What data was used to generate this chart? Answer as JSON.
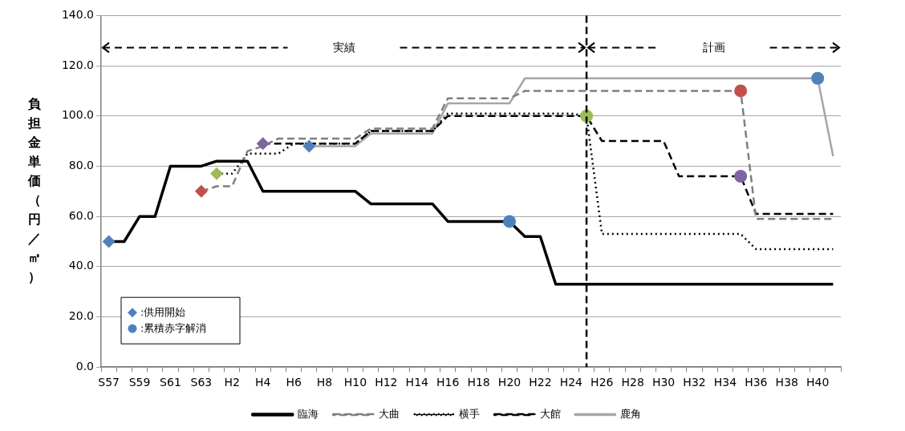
{
  "chart_data": {
    "type": "line",
    "ylabel": "負担金単価（円／㎥）",
    "categories": [
      "S57",
      null,
      "S59",
      null,
      "S61",
      null,
      "S63",
      null,
      "H2",
      null,
      "H4",
      null,
      "H6",
      null,
      "H8",
      null,
      "H10",
      null,
      "H12",
      null,
      "H14",
      null,
      "H16",
      null,
      "H18",
      null,
      "H20",
      null,
      "H22",
      null,
      "H24",
      null,
      "H26",
      null,
      "H28",
      null,
      "H30",
      null,
      "H32",
      null,
      "H34",
      null,
      "H36",
      null,
      "H38",
      null,
      "H40",
      null
    ],
    "series": [
      {
        "name": "臨海",
        "color": "#000000",
        "line_style": "solid",
        "values": [
          50,
          50,
          60,
          60,
          80,
          80,
          80,
          82,
          82,
          82,
          70,
          70,
          70,
          70,
          70,
          70,
          70,
          65,
          65,
          65,
          65,
          65,
          58,
          58,
          58,
          58,
          58,
          52,
          52,
          33,
          33,
          33,
          33,
          33,
          33,
          33,
          33,
          33,
          33,
          33,
          33,
          33,
          33,
          33,
          33,
          33,
          33,
          33
        ]
      },
      {
        "name": "大曲",
        "color": "#7f7f7f",
        "line_style": "dashed",
        "values": [
          null,
          null,
          null,
          null,
          null,
          null,
          70,
          72,
          72,
          86,
          88,
          91,
          91,
          91,
          91,
          91,
          91,
          95,
          95,
          95,
          95,
          95,
          107,
          107,
          107,
          107,
          107,
          110,
          110,
          110,
          110,
          110,
          110,
          110,
          110,
          110,
          110,
          110,
          110,
          110,
          110,
          110,
          59,
          59,
          59,
          59,
          59,
          59
        ]
      },
      {
        "name": "横手",
        "color": "#000000",
        "line_style": "dotted",
        "values": [
          null,
          null,
          null,
          null,
          null,
          null,
          null,
          77,
          77,
          85,
          85,
          85,
          89,
          89,
          89,
          89,
          89,
          94,
          94,
          94,
          94,
          94,
          101,
          101,
          101,
          101,
          101,
          101,
          101,
          101,
          101,
          100,
          53,
          53,
          53,
          53,
          53,
          53,
          53,
          53,
          53,
          53,
          47,
          47,
          47,
          47,
          47,
          47
        ]
      },
      {
        "name": "大館",
        "color": "#000000",
        "line_style": "dashed",
        "values": [
          null,
          null,
          null,
          null,
          null,
          null,
          null,
          null,
          null,
          null,
          89,
          89,
          89,
          89,
          89,
          89,
          89,
          94,
          94,
          94,
          94,
          94,
          100,
          100,
          100,
          100,
          100,
          100,
          100,
          100,
          100,
          100,
          90,
          90,
          90,
          90,
          90,
          76,
          76,
          76,
          76,
          76,
          61,
          61,
          61,
          61,
          61,
          61
        ]
      },
      {
        "name": "鹿角",
        "color": "#a6a6a6",
        "line_style": "solid",
        "values": [
          null,
          null,
          null,
          null,
          null,
          null,
          null,
          null,
          null,
          null,
          null,
          null,
          null,
          88,
          88,
          88,
          88,
          93,
          93,
          93,
          93,
          93,
          105,
          105,
          105,
          105,
          105,
          115,
          115,
          115,
          115,
          115,
          115,
          115,
          115,
          115,
          115,
          115,
          115,
          115,
          115,
          115,
          115,
          115,
          115,
          115,
          115,
          84
        ]
      },
      {
        "type": "scatter",
        "name": ":供用開始",
        "marker": "diamond",
        "values": [
          50,
          null,
          null,
          null,
          null,
          null,
          70,
          77,
          null,
          null,
          89,
          null,
          null,
          88,
          null,
          null,
          null,
          null,
          null,
          null,
          null,
          null,
          null,
          null,
          null,
          null,
          null,
          null,
          null,
          null,
          null,
          null,
          null,
          null,
          null,
          null,
          null,
          null,
          null,
          null,
          null,
          null,
          null,
          null,
          null,
          null,
          null,
          null
        ],
        "colors": [
          "#4f81bd",
          null,
          null,
          null,
          null,
          null,
          "#c0504d",
          "#9bbb59",
          null,
          null,
          "#8064a2",
          null,
          null,
          "#4f81bd",
          null,
          null,
          null,
          null,
          null,
          null,
          null,
          null,
          null,
          null,
          null,
          null,
          null,
          null,
          null,
          null,
          null,
          null,
          null,
          null,
          null,
          null,
          null,
          null,
          null,
          null,
          null,
          null,
          null,
          null,
          null,
          null,
          null,
          null
        ]
      },
      {
        "type": "scatter",
        "name": ":累積赤字解消",
        "marker": "circle",
        "values": [
          null,
          null,
          null,
          null,
          null,
          null,
          null,
          null,
          null,
          null,
          null,
          null,
          null,
          null,
          null,
          null,
          null,
          null,
          null,
          null,
          null,
          null,
          null,
          null,
          null,
          null,
          58,
          null,
          null,
          null,
          null,
          100,
          null,
          null,
          null,
          null,
          null,
          null,
          null,
          null,
          null,
          110,
          null,
          null,
          null,
          null,
          115,
          null
        ],
        "colors": [
          null,
          null,
          null,
          null,
          null,
          null,
          null,
          null,
          null,
          null,
          null,
          null,
          null,
          null,
          null,
          null,
          null,
          null,
          null,
          null,
          null,
          null,
          null,
          null,
          null,
          null,
          "#4f81bd",
          null,
          null,
          null,
          null,
          "#9bbb59",
          null,
          null,
          null,
          null,
          null,
          null,
          null,
          null,
          null,
          "#c0504d",
          null,
          null,
          null,
          null,
          "#4f81bd",
          null
        ]
      },
      {
        "type": "scatter",
        "marker": "circle",
        "values": [
          null,
          null,
          null,
          null,
          null,
          null,
          null,
          null,
          null,
          null,
          null,
          null,
          null,
          null,
          null,
          null,
          null,
          null,
          null,
          null,
          null,
          null,
          null,
          null,
          null,
          null,
          null,
          null,
          null,
          null,
          null,
          null,
          null,
          null,
          null,
          null,
          null,
          null,
          null,
          null,
          null,
          76,
          null,
          null,
          null,
          null,
          null,
          null
        ],
        "colors": [
          null,
          null,
          null,
          null,
          null,
          null,
          null,
          null,
          null,
          null,
          null,
          null,
          null,
          null,
          null,
          null,
          null,
          null,
          null,
          null,
          null,
          null,
          null,
          null,
          null,
          null,
          null,
          null,
          null,
          null,
          null,
          null,
          null,
          null,
          null,
          null,
          null,
          null,
          null,
          null,
          null,
          "#8064a2",
          null,
          null,
          null,
          null,
          null,
          null
        ]
      }
    ],
    "ylim": [
      0,
      140
    ],
    "yticks": [
      {
        "value": 0,
        "label": "0.0"
      },
      {
        "value": 20,
        "label": "20.0"
      },
      {
        "value": 40,
        "label": "40.0"
      },
      {
        "value": 60,
        "label": "60.0"
      },
      {
        "value": 80,
        "label": "80.0"
      },
      {
        "value": 100,
        "label": "100.0"
      },
      {
        "value": 120,
        "label": "120.0"
      },
      {
        "value": 140,
        "label": "140.0"
      }
    ],
    "grid": "y",
    "legend": "bottom",
    "annotations": [
      "実績",
      "計画"
    ]
  }
}
